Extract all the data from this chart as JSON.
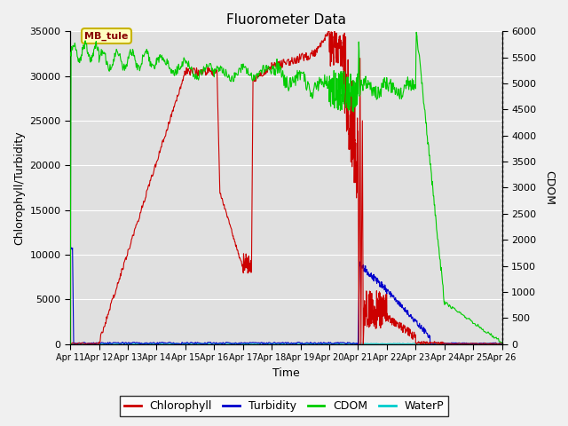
{
  "title": "Fluorometer Data",
  "xlabel": "Time",
  "ylabel_left": "Chlorophyll/Turbidity",
  "ylabel_right": "CDOM",
  "annotation": "MB_tule",
  "ylim_left": [
    0,
    35000
  ],
  "ylim_right": [
    0,
    6000
  ],
  "xlim": [
    0,
    15
  ],
  "xtick_labels": [
    "Apr 11",
    "Apr 12",
    "Apr 13",
    "Apr 14",
    "Apr 15",
    "Apr 16",
    "Apr 17",
    "Apr 18",
    "Apr 19",
    "Apr 20",
    "Apr 21",
    "Apr 22",
    "Apr 23",
    "Apr 24",
    "Apr 25",
    "Apr 26"
  ],
  "yticks_left": [
    0,
    5000,
    10000,
    15000,
    20000,
    25000,
    30000,
    35000
  ],
  "yticks_right": [
    0,
    500,
    1000,
    1500,
    2000,
    2500,
    3000,
    3500,
    4000,
    4500,
    5000,
    5500,
    6000
  ],
  "legend_entries": [
    "Chlorophyll",
    "Turbidity",
    "CDOM",
    "WaterP"
  ],
  "legend_colors": [
    "#cc0000",
    "#0000cc",
    "#00cc00",
    "#00cccc"
  ],
  "fig_bg": "#f0f0f0",
  "plot_bg": "#e0e0e0",
  "grid_color": "#ffffff",
  "chl_color": "#cc0000",
  "turb_color": "#0000cc",
  "cdom_color": "#00cc00",
  "waterp_color": "#00cccc",
  "annot_facecolor": "#ffffc0",
  "annot_edgecolor": "#c8b400",
  "annot_textcolor": "#880000"
}
